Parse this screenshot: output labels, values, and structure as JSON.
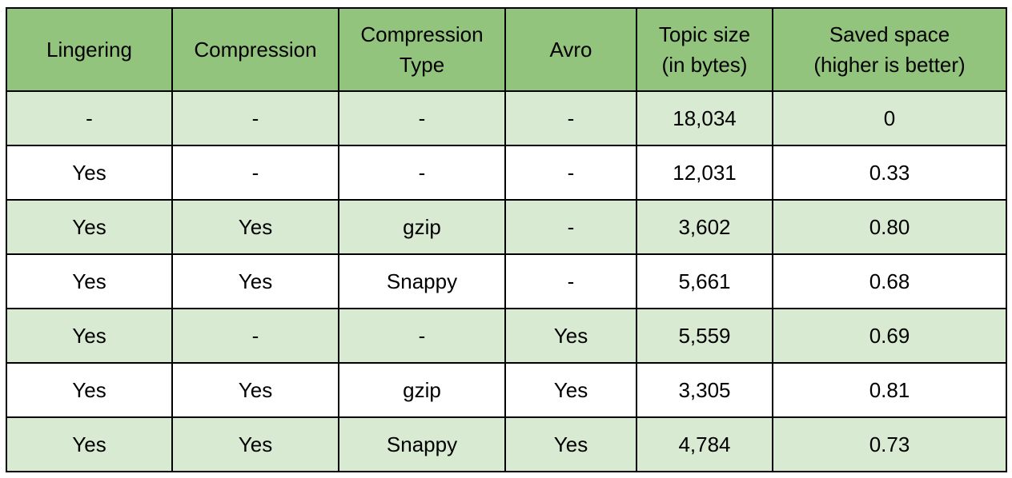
{
  "table": {
    "headers": [
      [
        "Lingering"
      ],
      [
        "Compression"
      ],
      [
        "Compression",
        "Type"
      ],
      [
        "Avro"
      ],
      [
        "Topic size",
        "(in bytes)"
      ],
      [
        "Saved space",
        "(higher is better)"
      ]
    ],
    "rows": [
      [
        "-",
        "-",
        "-",
        "-",
        "18,034",
        "0"
      ],
      [
        "Yes",
        "-",
        "-",
        "-",
        "12,031",
        "0.33"
      ],
      [
        "Yes",
        "Yes",
        "gzip",
        "-",
        "3,602",
        "0.80"
      ],
      [
        "Yes",
        "Yes",
        "Snappy",
        "-",
        "5,661",
        "0.68"
      ],
      [
        "Yes",
        "-",
        "-",
        "Yes",
        "5,559",
        "0.69"
      ],
      [
        "Yes",
        "Yes",
        "gzip",
        "Yes",
        "3,305",
        "0.81"
      ],
      [
        "Yes",
        "Yes",
        "Snappy",
        "Yes",
        "4,784",
        "0.73"
      ]
    ]
  },
  "colors": {
    "header_bg": "#93c47d",
    "shaded_row_bg": "#d9ead3",
    "plain_row_bg": "#ffffff",
    "border": "#000000"
  }
}
